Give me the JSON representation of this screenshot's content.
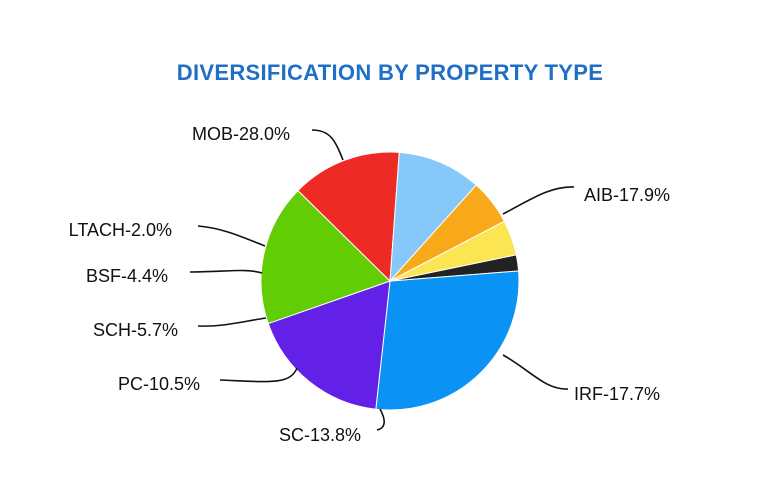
{
  "chart_data": {
    "type": "pie",
    "title": "DIVERSIFICATION BY PROPERTY TYPE",
    "slices": [
      {
        "name": "MOB",
        "value": 28.0,
        "label": "MOB-28.0%",
        "color": "#0a93f5"
      },
      {
        "name": "AIB",
        "value": 17.9,
        "label": "AIB-17.9%",
        "color": "#6320e6"
      },
      {
        "name": "IRF",
        "value": 17.7,
        "label": "IRF-17.7%",
        "color": "#62cc04"
      },
      {
        "name": "SC",
        "value": 13.8,
        "label": "SC-13.8%",
        "color": "#ee2a24"
      },
      {
        "name": "PC",
        "value": 10.5,
        "label": "PC-10.5%",
        "color": "#86c8fa"
      },
      {
        "name": "SCH",
        "value": 5.7,
        "label": "SCH-5.7%",
        "color": "#f7a91a"
      },
      {
        "name": "BSF",
        "value": 4.4,
        "label": "BSF-4.4%",
        "color": "#fbe552"
      },
      {
        "name": "LTACH",
        "value": 2.0,
        "label": "LTACH-2.0%",
        "color": "#222222"
      }
    ]
  }
}
